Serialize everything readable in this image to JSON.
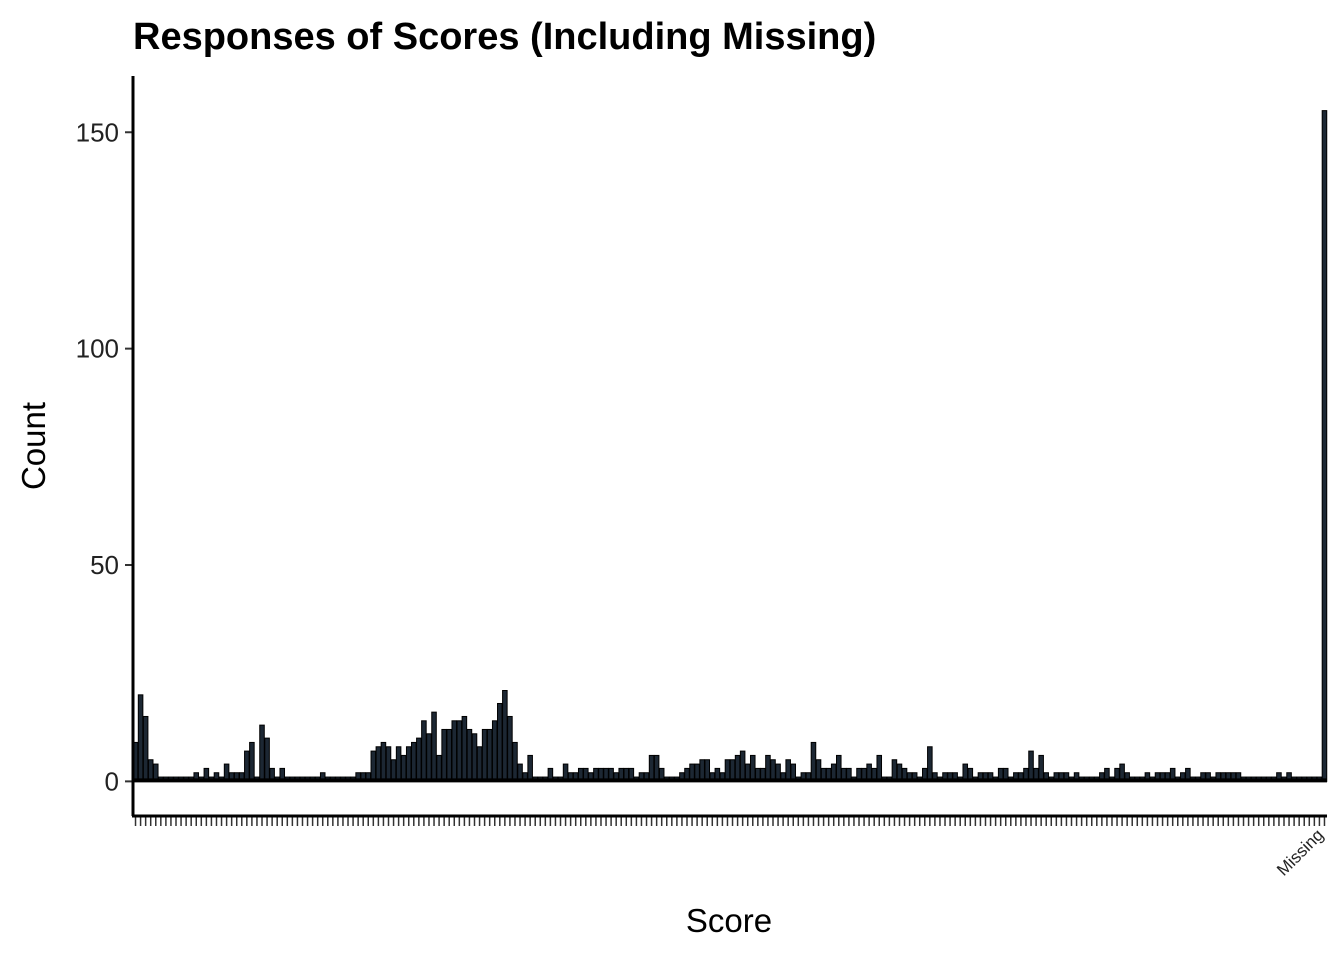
{
  "chart_data": {
    "type": "bar",
    "title": "Responses of Scores (Including Missing)",
    "xlabel": "Score",
    "ylabel": "Count",
    "ylim": [
      -8,
      163
    ],
    "yticks": [
      0,
      50,
      100,
      150
    ],
    "grid": false,
    "legend": "none",
    "bar_fill": "#1c2733",
    "bar_stroke": "#000000",
    "visible_category_labels": [
      "Missing"
    ],
    "values": [
      9,
      20,
      15,
      5,
      4,
      1,
      1,
      1,
      1,
      1,
      1,
      1,
      2,
      1,
      3,
      1,
      2,
      1,
      4,
      2,
      2,
      2,
      7,
      9,
      1,
      13,
      10,
      3,
      1,
      3,
      1,
      1,
      1,
      1,
      1,
      1,
      1,
      2,
      1,
      1,
      1,
      1,
      1,
      1,
      2,
      2,
      2,
      7,
      8,
      9,
      8,
      5,
      8,
      6,
      8,
      9,
      10,
      14,
      11,
      16,
      6,
      12,
      12,
      14,
      14,
      15,
      12,
      11,
      8,
      12,
      12,
      14,
      18,
      21,
      15,
      9,
      4,
      2,
      6,
      1,
      1,
      1,
      3,
      1,
      1,
      4,
      2,
      2,
      3,
      3,
      2,
      3,
      3,
      3,
      3,
      2,
      3,
      3,
      3,
      1,
      2,
      2,
      6,
      6,
      3,
      1,
      1,
      1,
      2,
      3,
      4,
      4,
      5,
      5,
      2,
      3,
      2,
      5,
      5,
      6,
      7,
      4,
      6,
      3,
      3,
      6,
      5,
      4,
      2,
      5,
      4,
      1,
      2,
      2,
      9,
      5,
      3,
      3,
      4,
      6,
      3,
      3,
      1,
      3,
      3,
      4,
      3,
      6,
      1,
      1,
      5,
      4,
      3,
      2,
      2,
      1,
      3,
      8,
      2,
      1,
      2,
      2,
      2,
      1,
      4,
      3,
      1,
      2,
      2,
      2,
      1,
      3,
      3,
      1,
      2,
      2,
      3,
      7,
      3,
      6,
      2,
      1,
      2,
      2,
      2,
      1,
      2,
      1,
      1,
      1,
      1,
      2,
      3,
      1,
      3,
      4,
      2,
      1,
      1,
      1,
      2,
      1,
      2,
      2,
      2,
      3,
      1,
      2,
      3,
      1,
      1,
      2,
      2,
      1,
      2,
      2,
      2,
      2,
      2,
      1,
      1,
      1,
      1,
      1,
      1,
      1,
      2,
      1,
      2,
      1,
      1,
      1,
      1,
      1,
      1,
      155
    ]
  }
}
